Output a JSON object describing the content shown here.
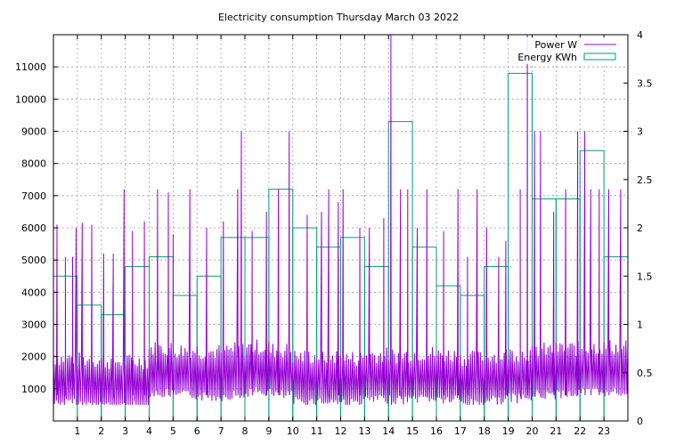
{
  "chart_data": {
    "type": "line",
    "title": "Electricity consumption Thursday March 03 2022",
    "xlabel": "",
    "ylabel": "",
    "y2label": "",
    "xlim": [
      0,
      24
    ],
    "ylim": [
      0,
      12000
    ],
    "y2lim": [
      0,
      4
    ],
    "x_ticks": [
      1,
      2,
      3,
      4,
      5,
      6,
      7,
      8,
      9,
      10,
      11,
      12,
      13,
      14,
      15,
      16,
      17,
      18,
      19,
      20,
      21,
      22,
      23
    ],
    "x_tick_labels": [
      "1",
      "2",
      "3",
      "4",
      "5",
      "6",
      "7",
      "8",
      "9",
      "10",
      "11",
      "12",
      "13",
      "14",
      "15",
      "16",
      "17",
      "18",
      "19",
      "20",
      "21",
      "22",
      "23"
    ],
    "y_ticks": [
      1000,
      2000,
      3000,
      4000,
      5000,
      6000,
      7000,
      8000,
      9000,
      10000,
      11000
    ],
    "y_tick_labels": [
      "1000",
      "2000",
      "3000",
      "4000",
      "5000",
      "6000",
      "7000",
      "8000",
      "9000",
      "10000",
      "11000"
    ],
    "y2_ticks": [
      0,
      0.5,
      1,
      1.5,
      2,
      2.5,
      3,
      3.5,
      4
    ],
    "y2_tick_labels": [
      "0",
      "0.5",
      "1",
      "1.5",
      "2",
      "2.5",
      "3",
      "3.5",
      "4"
    ],
    "grid": true,
    "legend_position": "top-right",
    "series": [
      {
        "name": "Power W",
        "axis": "y",
        "color": "#9400d3",
        "style": "line",
        "baseline_by_hour": [
          1200,
          1150,
          1100,
          1100,
          1500,
          1450,
          1400,
          1450,
          1550,
          1450,
          1250,
          1250,
          1200,
          1300,
          1300,
          1350,
          1300,
          1200,
          1300,
          1350,
          1450,
          1500,
          1550,
          1550
        ],
        "spikes": [
          {
            "x": 0.15,
            "y": 6100
          },
          {
            "x": 0.5,
            "y": 5100
          },
          {
            "x": 0.8,
            "y": 5100
          },
          {
            "x": 0.95,
            "y": 6000
          },
          {
            "x": 1.2,
            "y": 6150
          },
          {
            "x": 1.6,
            "y": 6100
          },
          {
            "x": 2.1,
            "y": 5200
          },
          {
            "x": 2.5,
            "y": 5200
          },
          {
            "x": 2.95,
            "y": 7200
          },
          {
            "x": 3.3,
            "y": 5900
          },
          {
            "x": 3.8,
            "y": 6200
          },
          {
            "x": 4.35,
            "y": 7200
          },
          {
            "x": 4.8,
            "y": 7100
          },
          {
            "x": 5.0,
            "y": 5800
          },
          {
            "x": 5.7,
            "y": 7200
          },
          {
            "x": 6.4,
            "y": 6000
          },
          {
            "x": 7.1,
            "y": 6200
          },
          {
            "x": 7.7,
            "y": 7200
          },
          {
            "x": 7.85,
            "y": 9000
          },
          {
            "x": 8.3,
            "y": 5900
          },
          {
            "x": 8.9,
            "y": 6500
          },
          {
            "x": 9.4,
            "y": 7200
          },
          {
            "x": 9.85,
            "y": 9000
          },
          {
            "x": 10.6,
            "y": 6400
          },
          {
            "x": 11.2,
            "y": 6500
          },
          {
            "x": 11.5,
            "y": 7200
          },
          {
            "x": 11.9,
            "y": 6800
          },
          {
            "x": 12.1,
            "y": 7200
          },
          {
            "x": 12.8,
            "y": 6000
          },
          {
            "x": 13.2,
            "y": 6000
          },
          {
            "x": 13.8,
            "y": 6300
          },
          {
            "x": 14.1,
            "y": 12000
          },
          {
            "x": 14.5,
            "y": 7200
          },
          {
            "x": 14.8,
            "y": 7200
          },
          {
            "x": 15.2,
            "y": 6000
          },
          {
            "x": 15.6,
            "y": 7200
          },
          {
            "x": 16.3,
            "y": 5900
          },
          {
            "x": 16.9,
            "y": 7200
          },
          {
            "x": 17.3,
            "y": 5100
          },
          {
            "x": 17.7,
            "y": 7200
          },
          {
            "x": 18.1,
            "y": 6000
          },
          {
            "x": 18.6,
            "y": 5100
          },
          {
            "x": 18.9,
            "y": 5600
          },
          {
            "x": 19.5,
            "y": 7200
          },
          {
            "x": 19.8,
            "y": 12000
          },
          {
            "x": 20.1,
            "y": 9000
          },
          {
            "x": 20.35,
            "y": 9000
          },
          {
            "x": 20.9,
            "y": 6500
          },
          {
            "x": 21.4,
            "y": 7200
          },
          {
            "x": 21.9,
            "y": 9000
          },
          {
            "x": 22.2,
            "y": 9000
          },
          {
            "x": 22.45,
            "y": 7200
          },
          {
            "x": 22.8,
            "y": 7200
          },
          {
            "x": 23.2,
            "y": 7200
          },
          {
            "x": 23.7,
            "y": 7200
          }
        ]
      },
      {
        "name": "Energy KWh",
        "axis": "y2",
        "color": "#009e73",
        "style": "steps",
        "x": [
          0,
          1,
          2,
          3,
          4,
          5,
          6,
          7,
          8,
          9,
          10,
          11,
          12,
          13,
          14,
          15,
          16,
          17,
          18,
          19,
          20,
          21,
          22,
          23
        ],
        "values": [
          1.5,
          1.2,
          1.1,
          1.6,
          1.7,
          1.3,
          1.5,
          1.9,
          1.9,
          2.4,
          2.0,
          1.8,
          1.9,
          1.6,
          3.1,
          1.8,
          1.4,
          1.3,
          1.6,
          3.6,
          2.3,
          2.3,
          2.8,
          1.7
        ]
      }
    ]
  }
}
